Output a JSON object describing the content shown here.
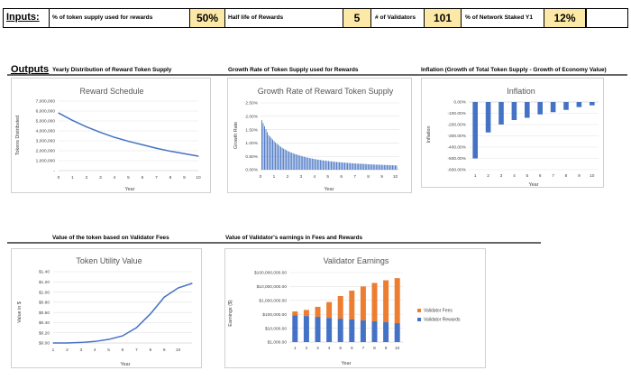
{
  "inputs": {
    "heading": "Inputs:",
    "items": [
      {
        "label": "% of token supply used for rewards",
        "value": "50%"
      },
      {
        "label": "Half life of Rewards",
        "value": "5"
      },
      {
        "label": "# of Validators",
        "value": "101"
      },
      {
        "label": "% of Network Staked Y1",
        "value": "12%"
      }
    ]
  },
  "outputs": {
    "heading": "Outputs",
    "sections": [
      "Yearly Distribution of Reward Token Supply",
      "Growth Rate of Token Supply used for Rewards",
      "Inflation (Growth of Total Token Supply - Growth of Economy Value)",
      "Value of the token based on Validator Fees",
      "Value of Validator's earnings in Fees and Rewards"
    ]
  },
  "colors": {
    "line": "#4472c4",
    "fees": "#ed7d31",
    "rewards": "#4472c4",
    "input_fill": "#fde9a7"
  },
  "chart_data": [
    {
      "type": "line",
      "title": "Reward Schedule",
      "xlabel": "Year",
      "ylabel": "Tokens Distributed",
      "x": [
        0,
        1,
        2,
        3,
        4,
        5,
        6,
        7,
        8,
        9,
        10
      ],
      "series": [
        {
          "values": [
            5800000,
            5050000,
            4400000,
            3850000,
            3350000,
            2950000,
            2600000,
            2250000,
            1950000,
            1700000,
            1450000
          ]
        }
      ],
      "ylim": [
        0,
        7000000
      ],
      "y_ticks": [
        "-",
        "1,000,000",
        "2,000,000",
        "3,000,000",
        "4,000,000",
        "5,000,000",
        "6,000,000",
        "7,000,000"
      ],
      "x_ticks": [
        "0",
        "1",
        "2",
        "3",
        "4",
        "5",
        "6",
        "7",
        "8",
        "9",
        "10"
      ]
    },
    {
      "type": "bar",
      "title": "Growth Rate of Reward Token Supply",
      "xlabel": "Year",
      "ylabel": "Growth Rate",
      "x": [
        0.1,
        0.6,
        1.1,
        1.6,
        2.1,
        2.6,
        3.1,
        3.6,
        4.1,
        4.6,
        5.1,
        5.6,
        6.1,
        6.6,
        7.1,
        7.6,
        8.1,
        8.6,
        9.1,
        9.6,
        10.1
      ],
      "values": [
        1.85,
        1.3,
        1.02,
        0.82,
        0.68,
        0.58,
        0.5,
        0.44,
        0.39,
        0.35,
        0.32,
        0.29,
        0.27,
        0.25,
        0.23,
        0.22,
        0.2,
        0.19,
        0.18,
        0.17,
        0.16
      ],
      "ylim": [
        0,
        2.5
      ],
      "y_ticks": [
        "0.00%",
        "0.50%",
        "1.00%",
        "1.50%",
        "2.00%",
        "2.50%"
      ],
      "x_ticks": [
        "0",
        "1",
        "2",
        "3",
        "4",
        "5",
        "6",
        "7",
        "8",
        "9",
        "10"
      ]
    },
    {
      "type": "bar",
      "title": "Inflation",
      "xlabel": "Year",
      "ylabel": "Inflation",
      "categories": [
        "1",
        "2",
        "3",
        "4",
        "5",
        "6",
        "7",
        "8",
        "9",
        "10"
      ],
      "values": [
        -500,
        -270,
        -200,
        -160,
        -140,
        -110,
        -90,
        -70,
        -45,
        -30
      ],
      "ylim": [
        -600,
        0
      ],
      "y_ticks": [
        "0.00%",
        "-100.00%",
        "-200.00%",
        "-300.00%",
        "-400.00%",
        "-500.00%",
        "-600.00%"
      ]
    },
    {
      "type": "line",
      "title": "Token Utility Value",
      "xlabel": "Year",
      "ylabel": "Value in $",
      "x": [
        1,
        2,
        3,
        4,
        5,
        6,
        7,
        8,
        9,
        10,
        11
      ],
      "series": [
        {
          "values": [
            0.0,
            0.0,
            0.01,
            0.03,
            0.07,
            0.14,
            0.3,
            0.57,
            0.9,
            1.08,
            1.17
          ]
        }
      ],
      "ylim": [
        0,
        1.4
      ],
      "y_ticks": [
        "$0.00",
        "$0.20",
        "$0.40",
        "$0.60",
        "$0.80",
        "$1.00",
        "$1.20",
        "$1.40"
      ],
      "x_ticks": [
        "1",
        "2",
        "3",
        "4",
        "5",
        "6",
        "7",
        "8",
        "9",
        "10"
      ]
    },
    {
      "type": "bar",
      "title": "Validator Earnings",
      "xlabel": "Year",
      "ylabel": "Earnings ($)",
      "yscale": "log",
      "categories": [
        "1",
        "2",
        "3",
        "4",
        "5",
        "6",
        "7",
        "8",
        "9",
        "10"
      ],
      "ylim": [
        1000,
        100000000
      ],
      "series": [
        {
          "name": "Validator Fees",
          "values": [
            75000,
            130000,
            280000,
            700000,
            2000000,
            5000000,
            10000000,
            18000000,
            28000000,
            40000000
          ]
        },
        {
          "name": "Validator Rewards",
          "values": [
            85000,
            75000,
            65000,
            55000,
            48000,
            42000,
            36000,
            31000,
            27000,
            23000
          ]
        }
      ],
      "y_ticks": [
        "$1,000.00",
        "$10,000.00",
        "$100,000.00",
        "$1,000,000.00",
        "$10,000,000.00",
        "$100,000,000.00"
      ],
      "legend": "right"
    }
  ]
}
